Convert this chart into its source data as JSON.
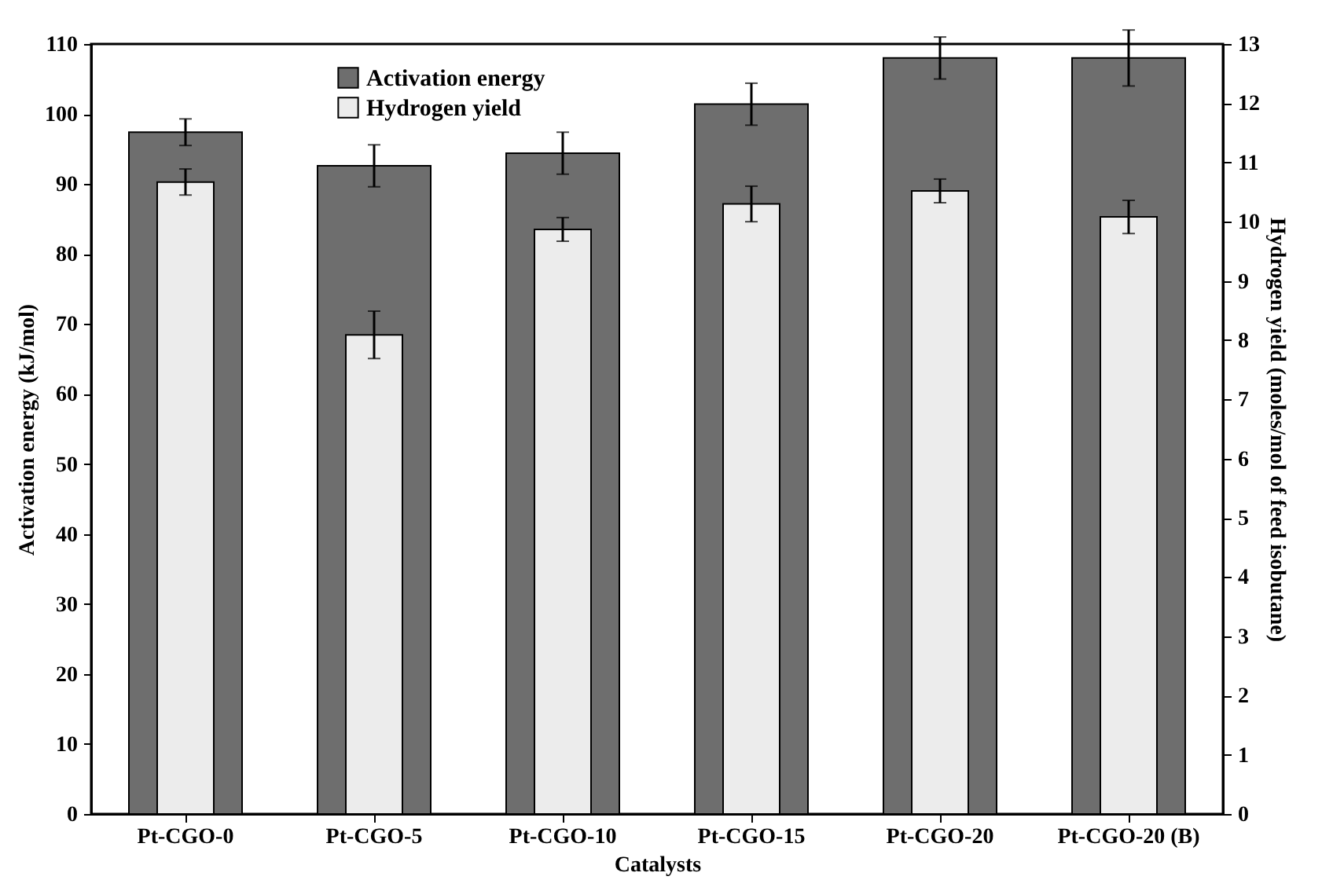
{
  "chart_data": {
    "type": "bar",
    "xlabel": "Catalysts",
    "ylabel": "Activation energy (kJ/mol)",
    "y2label": "Hydrogen yield (moles/mol of feed isobutane)",
    "categories": [
      "Pt-CGO-0",
      "Pt-CGO-5",
      "Pt-CGO-10",
      "Pt-CGO-15",
      "Pt-CGO-20",
      "Pt-CGO-20 (B)"
    ],
    "series": [
      {
        "name": "Activation energy",
        "color": "#6e6e6e",
        "values": [
          97.4,
          92.6,
          94.4,
          101.4,
          108,
          108
        ],
        "errors": [
          1.9,
          3,
          3,
          3,
          3,
          4
        ]
      },
      {
        "name": "Hydrogen yield",
        "color": "#ececec",
        "axis": "y2",
        "values": [
          10.67,
          8.09,
          9.87,
          10.3,
          10.52,
          10.08
        ],
        "errors": [
          0.22,
          0.4,
          0.2,
          0.3,
          0.2,
          0.28
        ]
      }
    ],
    "ylim": [
      0,
      110
    ],
    "yticks": [
      0,
      10,
      20,
      30,
      40,
      50,
      60,
      70,
      80,
      90,
      100,
      110
    ],
    "y2lim": [
      0,
      13
    ],
    "y2ticks": [
      0,
      1,
      2,
      3,
      4,
      5,
      6,
      7,
      8,
      9,
      10,
      11,
      12,
      13
    ],
    "grid": false,
    "legend": "top left"
  }
}
